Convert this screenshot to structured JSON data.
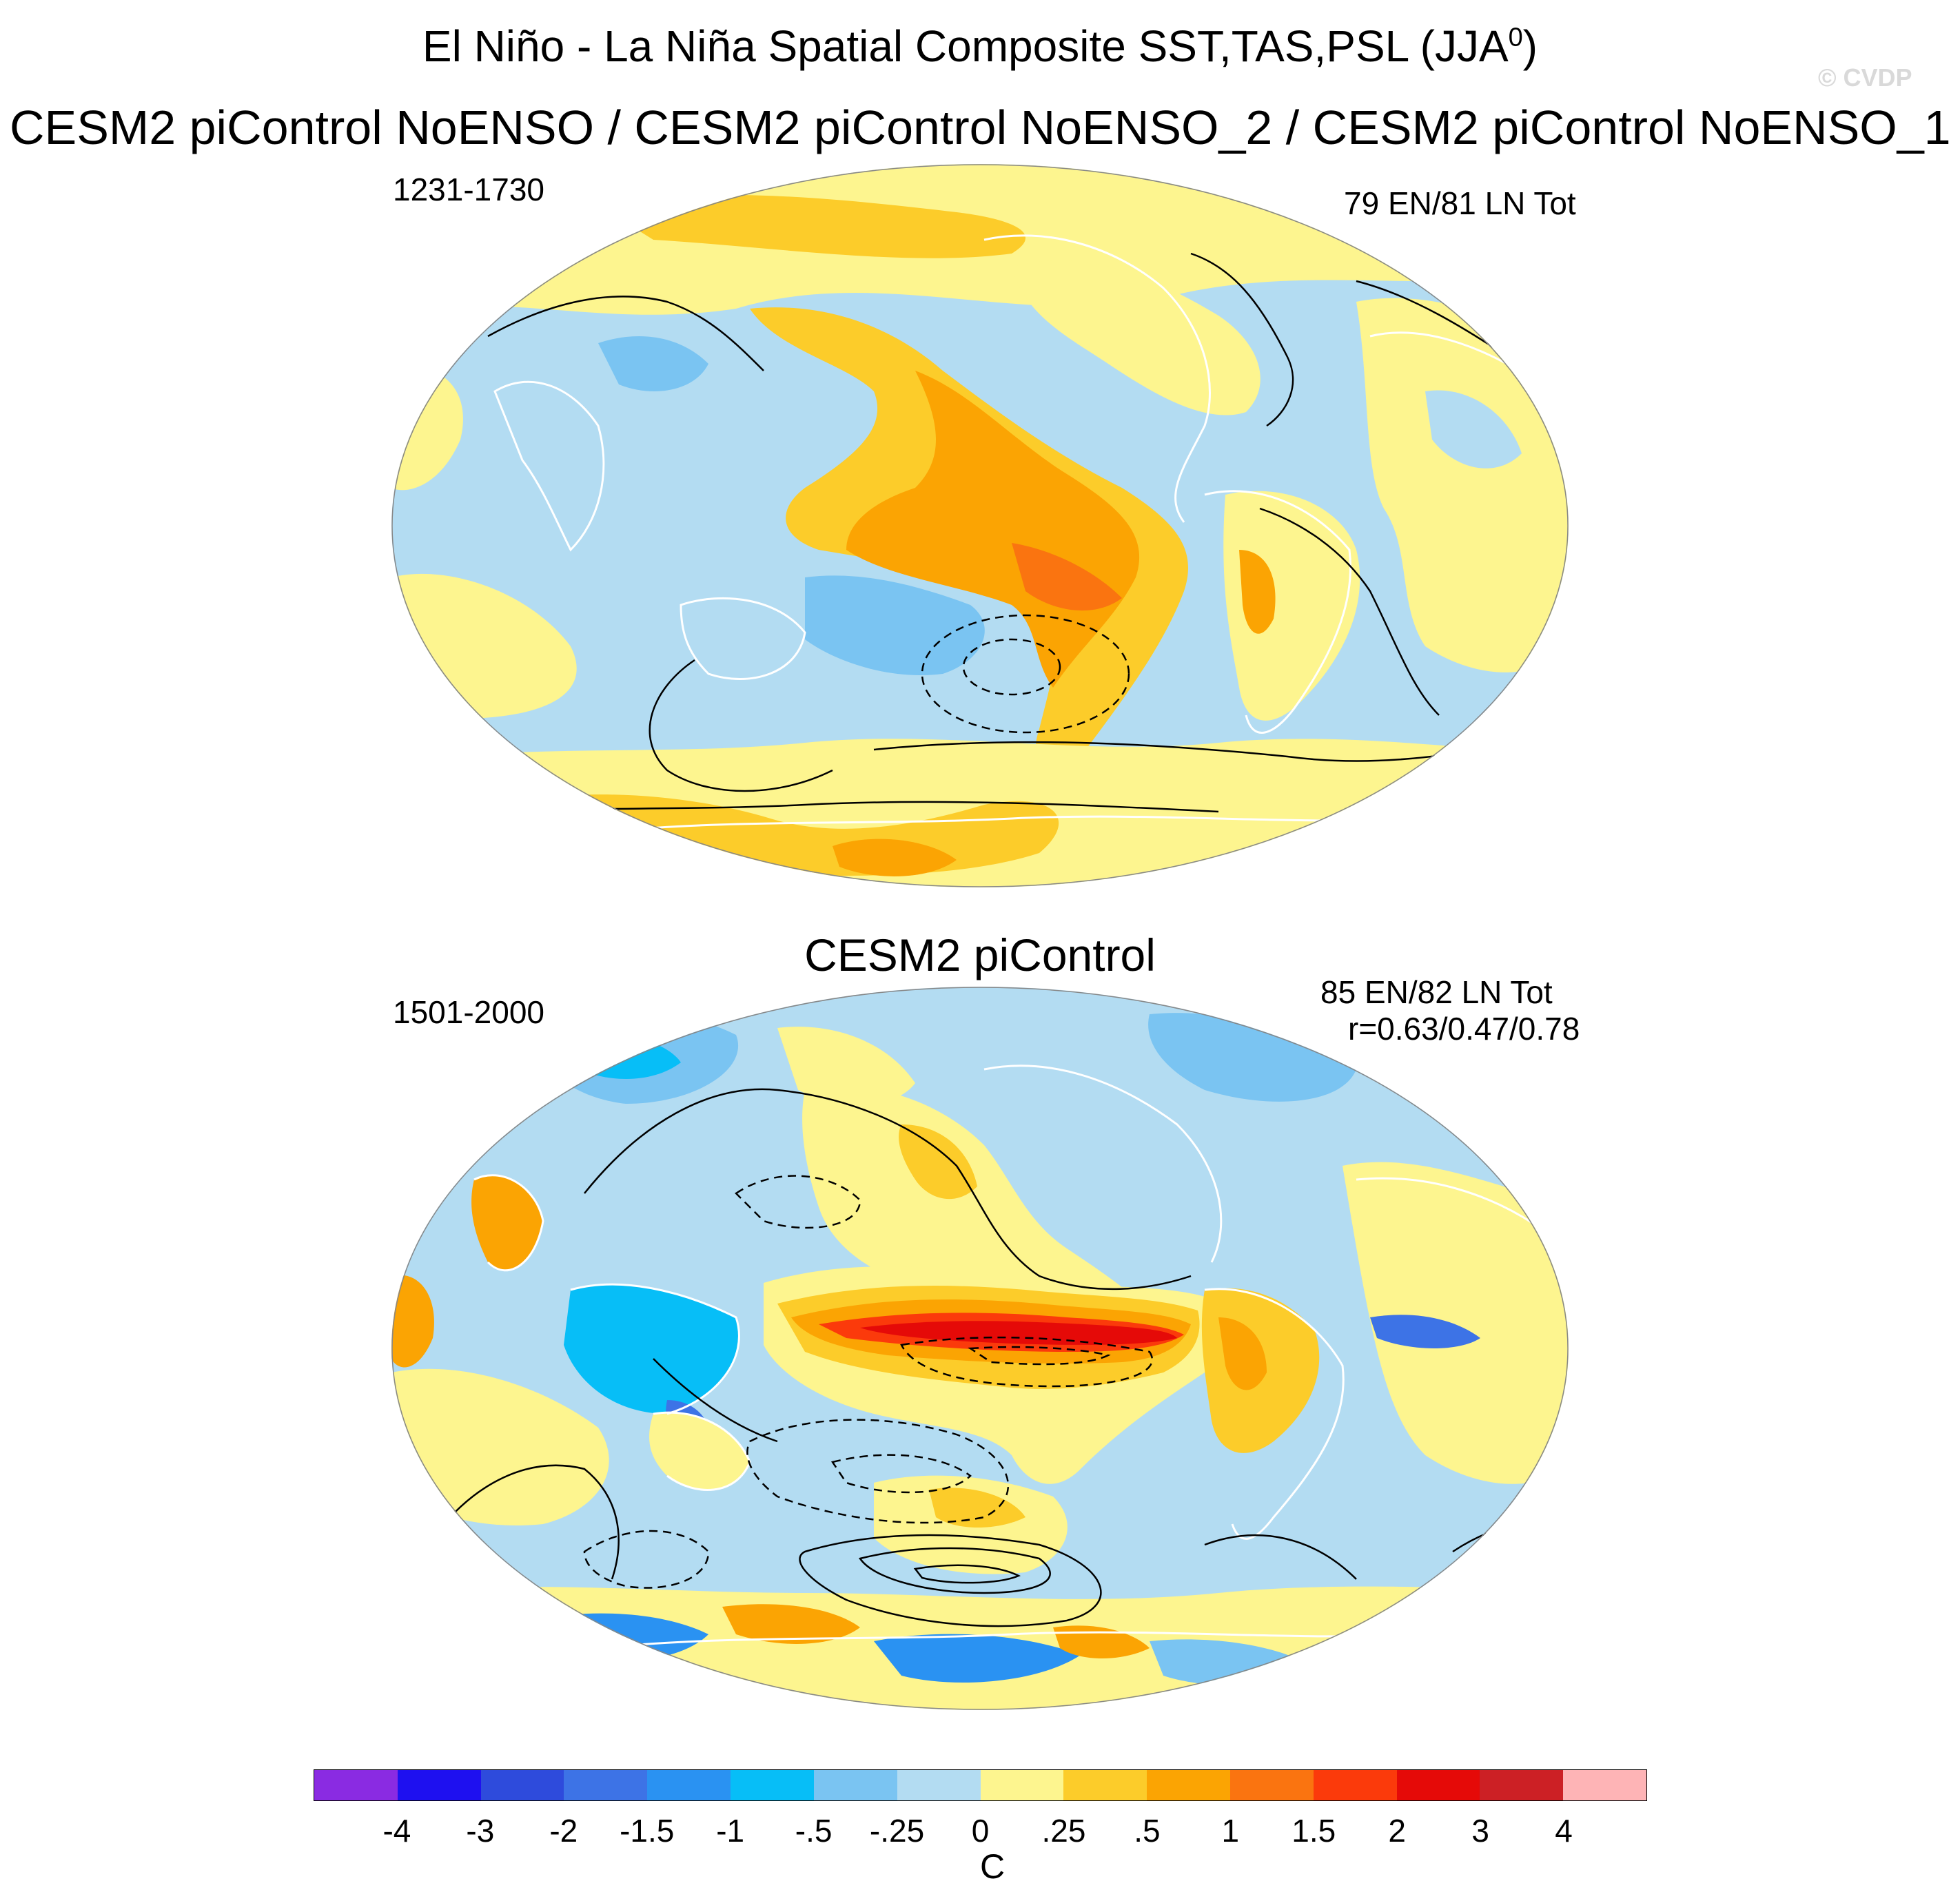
{
  "title": {
    "main_prefix": "El Niño - La Niña Spatial Composite SST,TAS,PSL (JJA",
    "main_superscript": "0",
    "main_suffix": ")",
    "watermark": "© CVDP"
  },
  "panels": [
    {
      "title": "CESM2 piControl NoENSO / CESM2 piControl NoENSO_2 / CESM2 piControl NoENSO_1",
      "period": "1231-1730",
      "count": "79 EN/81 LN Tot",
      "correlation": ""
    },
    {
      "title": "CESM2 piControl",
      "period": "1501-2000",
      "count": "85 EN/82 LN Tot",
      "correlation": "r=0.63/0.47/0.78"
    }
  ],
  "colorbar": {
    "units": "C",
    "colors": [
      "#8a2be2",
      "#1e10f0",
      "#2e4bdc",
      "#3d73e6",
      "#2a92f2",
      "#07bef7",
      "#7ac4f2",
      "#b3dcf2",
      "#fdf58f",
      "#fccc2a",
      "#fba403",
      "#fa7410",
      "#fb3a0b",
      "#e50a08",
      "#cc2025",
      "#feb4b6"
    ],
    "labels": [
      "-4",
      "-3",
      "-2",
      "-1.5",
      "-1",
      "-.5",
      "-.25",
      "0",
      ".25",
      ".5",
      "1",
      "1.5",
      "2",
      "3",
      "4"
    ]
  }
}
